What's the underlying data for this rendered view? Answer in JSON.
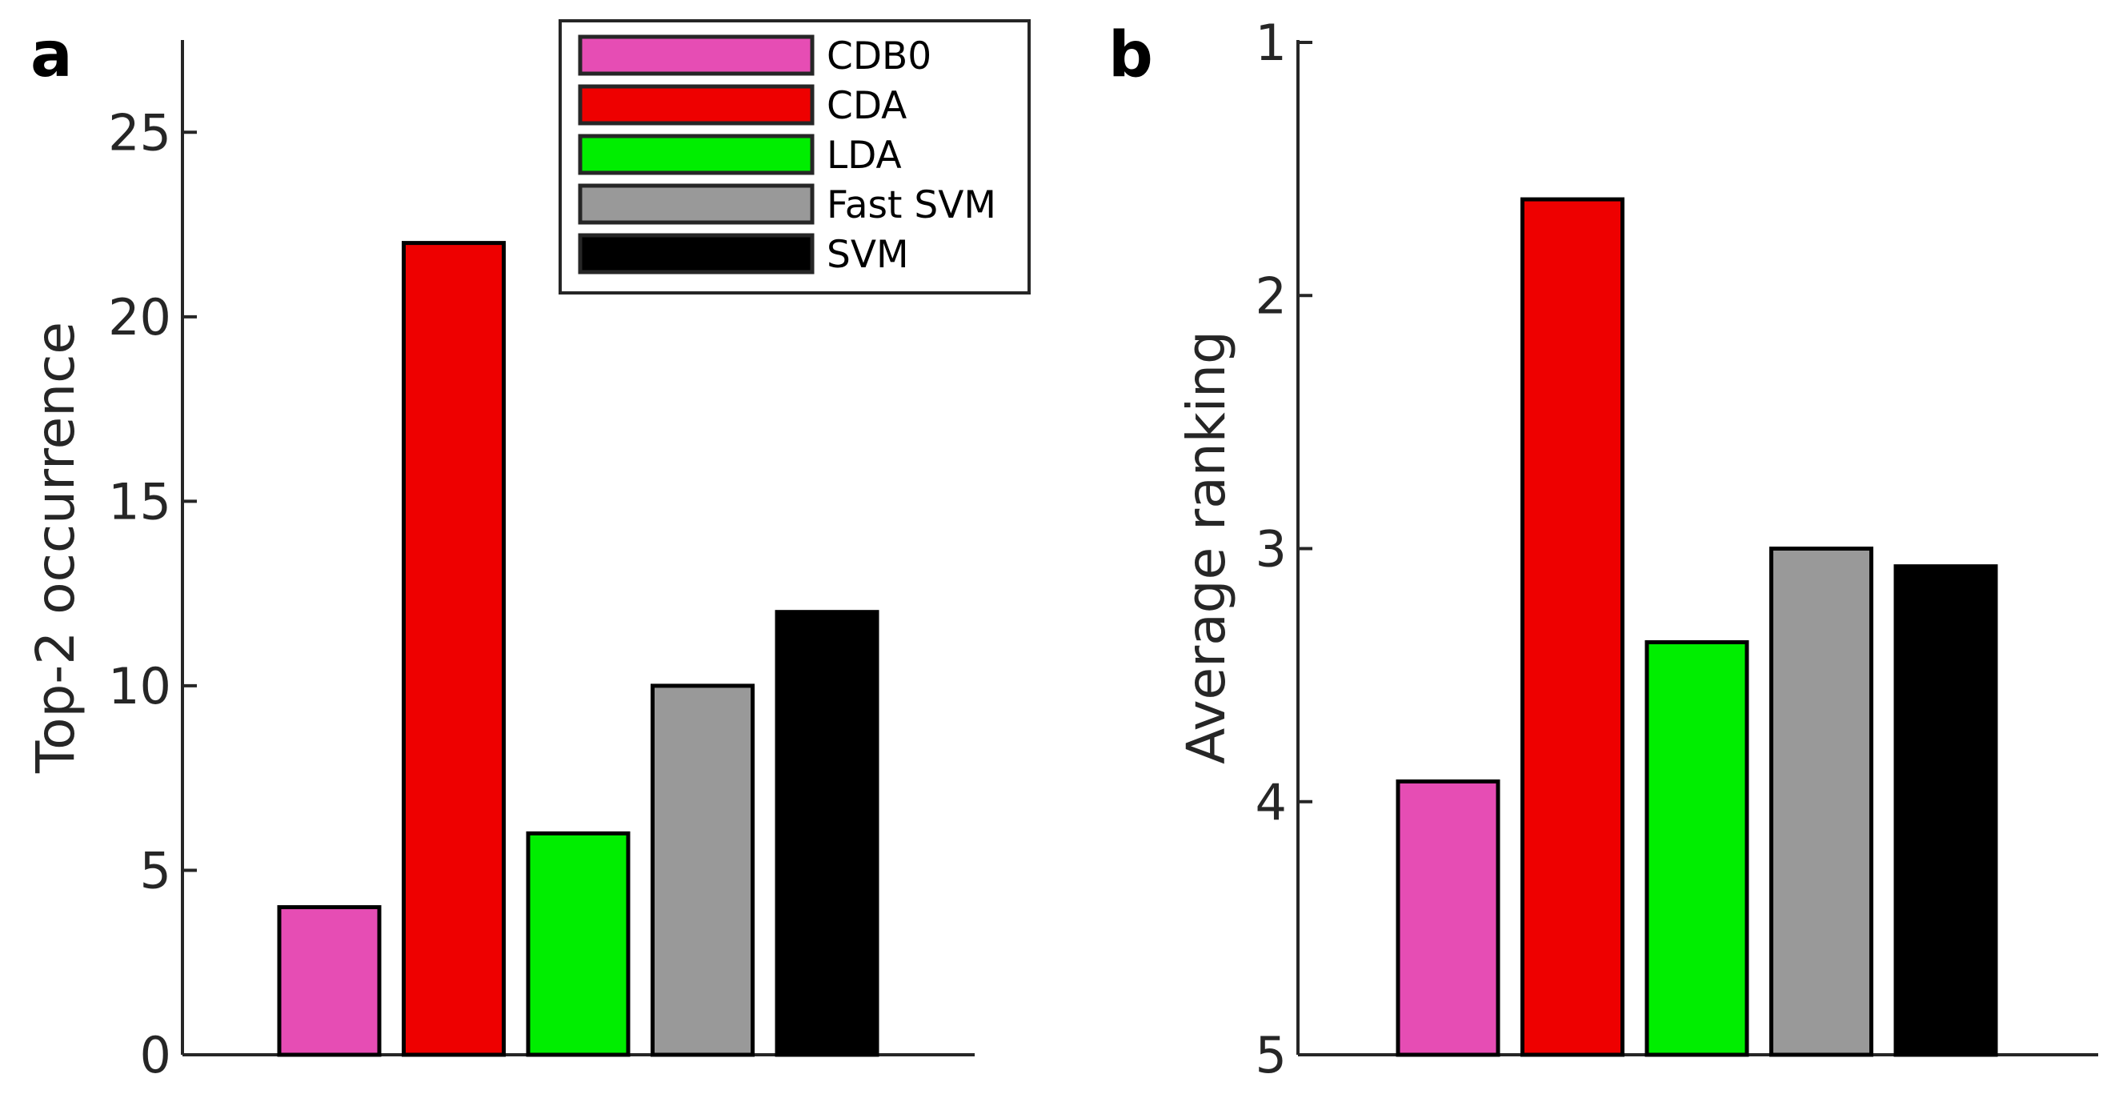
{
  "chart_data": [
    {
      "type": "bar",
      "panel_label": "a",
      "categories": [
        "CDB0",
        "CDA",
        "LDA",
        "Fast SVM",
        "SVM"
      ],
      "values": [
        4,
        22,
        6,
        10,
        12
      ],
      "colors": [
        "#e64db4",
        "#ee0000",
        "#00ee00",
        "#999999",
        "#000000"
      ],
      "title": "",
      "xlabel": "",
      "ylabel": "Top-2 occurrence",
      "ylim": [
        0,
        27.5
      ],
      "yticks": [
        0,
        5,
        10,
        15,
        20,
        25
      ],
      "ytick_labels": [
        "0",
        "5",
        "10",
        "15",
        "20",
        "25"
      ],
      "y_reversed": false,
      "grid": false
    },
    {
      "type": "bar",
      "panel_label": "b",
      "categories": [
        "CDB0",
        "CDA",
        "LDA",
        "Fast SVM",
        "SVM"
      ],
      "values": [
        3.92,
        1.62,
        3.37,
        3.0,
        3.07
      ],
      "colors": [
        "#e64db4",
        "#ee0000",
        "#00ee00",
        "#999999",
        "#000000"
      ],
      "title": "",
      "xlabel": "",
      "ylabel": "Average ranking",
      "ylim": [
        1,
        5
      ],
      "yticks": [
        1,
        2,
        3,
        4,
        5
      ],
      "ytick_labels": [
        "1",
        "2",
        "3",
        "4",
        "5"
      ],
      "y_reversed": true,
      "grid": false
    }
  ],
  "legend": {
    "placement": "top-center of panel a",
    "entries": [
      {
        "label": "CDB0",
        "color": "#e64db4"
      },
      {
        "label": "CDA",
        "color": "#ee0000"
      },
      {
        "label": "LDA",
        "color": "#00ee00"
      },
      {
        "label": "Fast SVM",
        "color": "#999999"
      },
      {
        "label": "SVM",
        "color": "#000000"
      }
    ]
  }
}
